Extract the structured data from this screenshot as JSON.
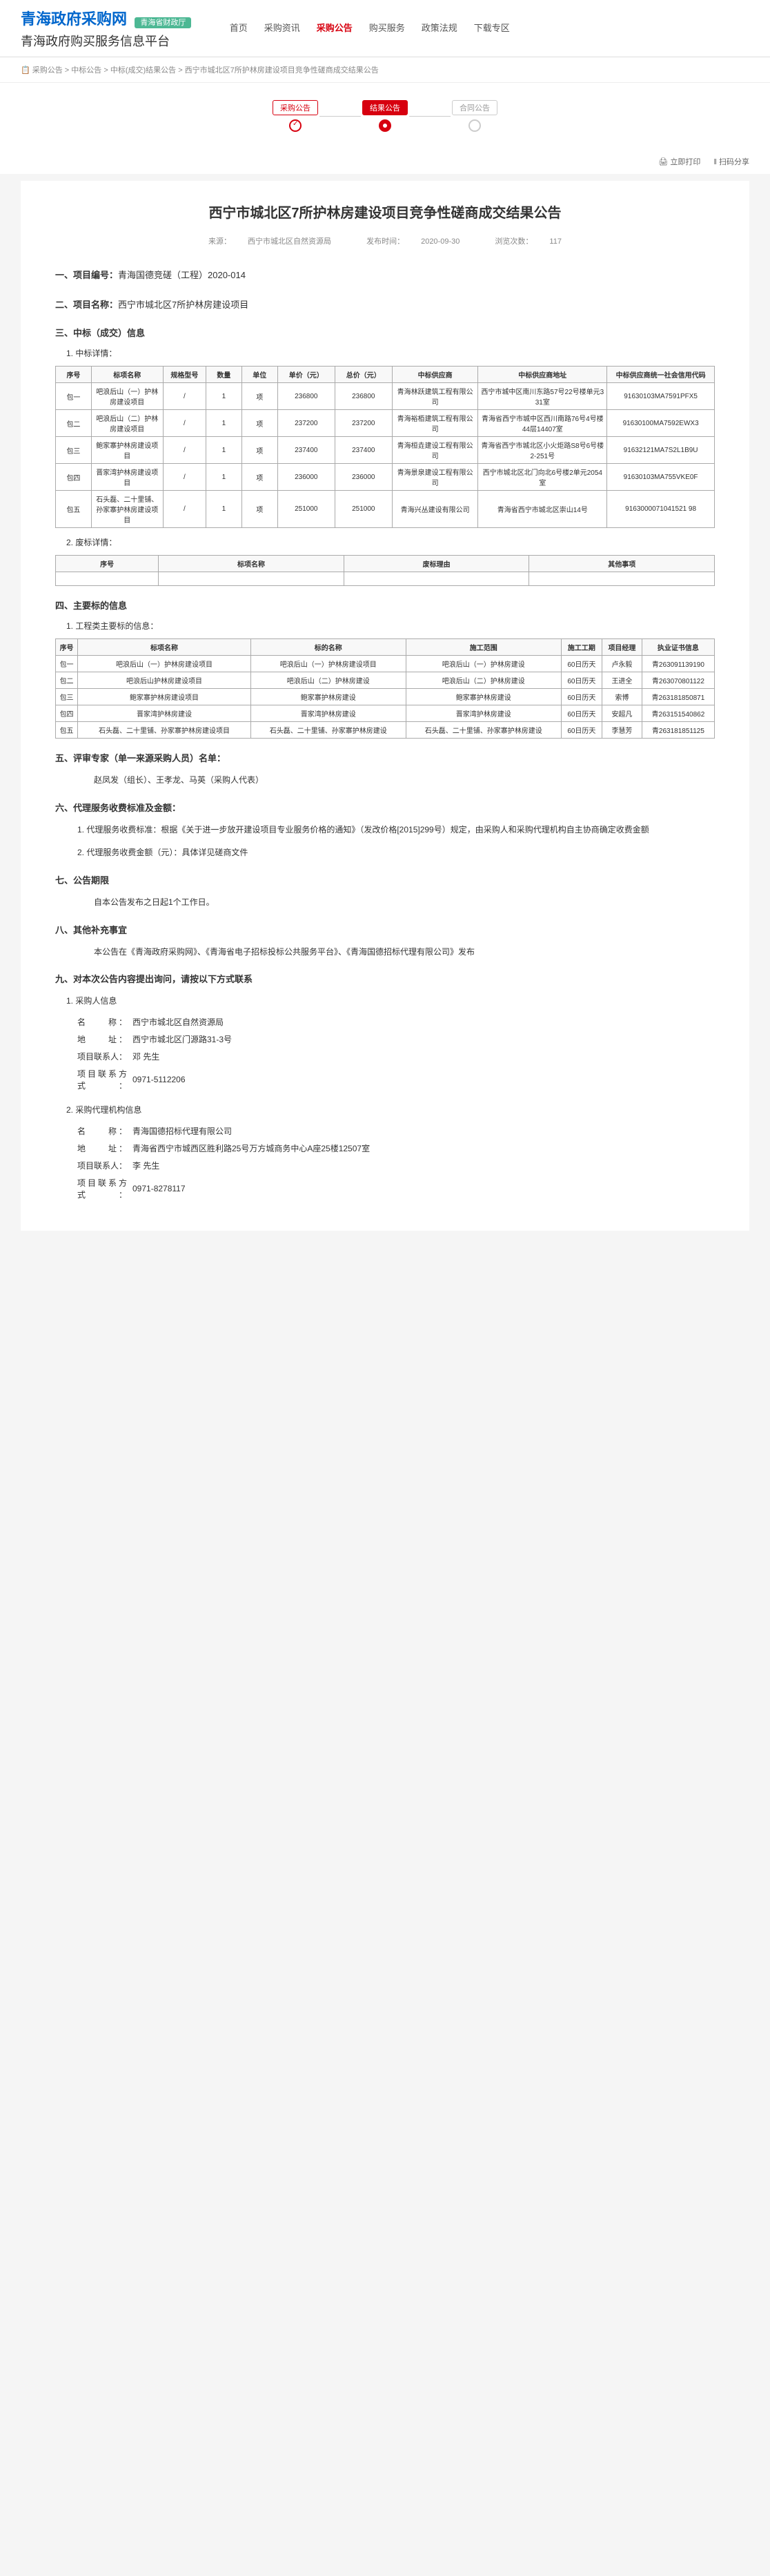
{
  "header": {
    "site_title": "青海政府采购网",
    "badge": "青海省财政厅",
    "site_sub": "青海政府购买服务信息平台",
    "nav": [
      "首页",
      "采购资讯",
      "采购公告",
      "购买服务",
      "政策法规",
      "下载专区"
    ],
    "nav_active_index": 2
  },
  "breadcrumb": "📋 采购公告 > 中标公告 > 中标(成交)结果公告 > 西宁市城北区7所护林房建设项目竞争性磋商成交结果公告",
  "stages": {
    "items": [
      "采购公告",
      "结果公告",
      "合同公告"
    ],
    "active_index": 1
  },
  "toolbar": {
    "print": "🖨 立即打印",
    "share": "‖ 扫码分享"
  },
  "title": "西宁市城北区7所护林房建设项目竞争性磋商成交结果公告",
  "meta": {
    "source_label": "来源：",
    "source": "西宁市城北区自然资源局",
    "date_label": "发布时间：",
    "date": "2020-09-30",
    "views_label": "浏览次数：",
    "views": "117"
  },
  "s1": {
    "label": "一、项目编号：",
    "value": "青海国德竞磋（工程）2020-014"
  },
  "s2": {
    "label": "二、项目名称：",
    "value": "西宁市城北区7所护林房建设项目"
  },
  "s3": {
    "label": "三、中标（成交）信息"
  },
  "s3_sub1": "1. 中标详情：",
  "bid_headers": [
    "序号",
    "标项名称",
    "规格型号",
    "数量",
    "单位",
    "单价（元）",
    "总价（元）",
    "中标供应商",
    "中标供应商地址",
    "中标供应商统一社会信用代码"
  ],
  "bid_rows": [
    {
      "no": "包一",
      "name": "吧浪后山（一）护林房建设项目",
      "spec": "/",
      "qty": "1",
      "unit": "项",
      "price": "236800",
      "total": "236800",
      "supplier": "青海林跃建筑工程有限公司",
      "addr": "西宁市城中区南川东路57号22号楼单元331室",
      "code": "91630103MA7591PFX5"
    },
    {
      "no": "包二",
      "name": "吧浪后山（二）护林房建设项目",
      "spec": "/",
      "qty": "1",
      "unit": "项",
      "price": "237200",
      "total": "237200",
      "supplier": "青海裕栢建筑工程有限公司",
      "addr": "青海省西宁市城中区西川南路76号4号楼44层14407室",
      "code": "91630100MA7592EWX3"
    },
    {
      "no": "包三",
      "name": "鲍家寨护林房建设项目",
      "spec": "/",
      "qty": "1",
      "unit": "项",
      "price": "237400",
      "total": "237400",
      "supplier": "青海桓垚建设工程有限公司",
      "addr": "青海省西宁市城北区小火炬路S8号6号楼2-251号",
      "code": "91632121MA7S2L1B9U"
    },
    {
      "no": "包四",
      "name": "晋家湾护林房建设项目",
      "spec": "/",
      "qty": "1",
      "unit": "项",
      "price": "236000",
      "total": "236000",
      "supplier": "青海景泉建设工程有限公司",
      "addr": "西宁市城北区北门向北6号楼2单元2054室",
      "code": "91630103MA755VKE0F"
    },
    {
      "no": "包五",
      "name": "石头磊、二十里铺、孙家寨护林房建设项目",
      "spec": "/",
      "qty": "1",
      "unit": "项",
      "price": "251000",
      "total": "251000",
      "supplier": "青海兴丛建设有限公司",
      "addr": "青海省西宁市城北区崇山14号",
      "code": "9163000071041521 98"
    }
  ],
  "s3_sub2": "2. 废标详情：",
  "void_headers": [
    "序号",
    "标项名称",
    "废标理由",
    "其他事项"
  ],
  "s4": {
    "label": "四、主要标的信息"
  },
  "s4_sub1": "1. 工程类主要标的信息：",
  "main_headers": [
    "序号",
    "标项名称",
    "标的名称",
    "施工范围",
    "施工工期",
    "项目经理",
    "执业证书信息"
  ],
  "main_rows": [
    {
      "no": "包一",
      "proj": "吧浪后山（一）护林房建设项目",
      "target": "吧浪后山（一）护林房建设项目",
      "scope": "吧浪后山（一）护林房建设",
      "period": "60日历天",
      "mgr": "卢永毅",
      "cert": "青263091139190"
    },
    {
      "no": "包二",
      "proj": "吧浪后山护林房建设项目",
      "target": "吧浪后山（二）护林房建设",
      "scope": "吧浪后山（二）护林房建设",
      "period": "60日历天",
      "mgr": "王进全",
      "cert": "青263070801122"
    },
    {
      "no": "包三",
      "proj": "鲍家寨护林房建设项目",
      "target": "鲍家寨护林房建设",
      "scope": "鲍家寨护林房建设",
      "period": "60日历天",
      "mgr": "索博",
      "cert": "青263181850871"
    },
    {
      "no": "包四",
      "proj": "晋家湾护林房建设",
      "target": "晋家湾护林房建设",
      "scope": "晋家湾护林房建设",
      "period": "60日历天",
      "mgr": "安超凡",
      "cert": "青263151540862"
    },
    {
      "no": "包五",
      "proj": "石头磊、二十里铺、孙家寨护林房建设项目",
      "target": "石头磊、二十里铺、孙家寨护林房建设",
      "scope": "石头磊、二十里铺、孙家寨护林房建设",
      "period": "60日历天",
      "mgr": "李慧芳",
      "cert": "青263181851125"
    }
  ],
  "s5": {
    "label": "五、评审专家（单一来源采购人员）名单：",
    "value": "赵凤发（组长）、王孝龙、马英（采购人代表）"
  },
  "s6": {
    "label": "六、代理服务收费标准及金额：",
    "line1": "1. 代理服务收费标准：根据《关于进一步放开建设项目专业服务价格的通知》（发改价格[2015]299号）规定，由采购人和采购代理机构自主协商确定收费金额",
    "line2": "2. 代理服务收费金额（元）：具体详见磋商文件"
  },
  "s7": {
    "label": "七、公告期限",
    "value": "自本公告发布之日起1个工作日。"
  },
  "s8": {
    "label": "八、其他补充事宜",
    "value": "本公告在《青海政府采购网》、《青海省电子招标投标公共服务平台》、《青海国德招标代理有限公司》发布"
  },
  "s9": {
    "label": "九、对本次公告内容提出询问，请按以下方式联系"
  },
  "purchaser": {
    "heading": "1. 采购人信息",
    "name_lbl": "名　　称：",
    "name": "西宁市城北区自然资源局",
    "addr_lbl": "地　　址：",
    "addr": "西宁市城北区门源路31-3号",
    "phone_lbl": "项目联系人：",
    "phone_person": "邓 先生",
    "tel_lbl": "项目联系方式：",
    "tel": "0971-5112206"
  },
  "agent": {
    "heading": "2. 采购代理机构信息",
    "name_lbl": "名　　称：",
    "name": "青海国德招标代理有限公司",
    "addr_lbl": "地　　址：",
    "addr": "青海省西宁市城西区胜利路25号万方城商务中心A座25楼12507室",
    "phone_lbl": "项目联系人：",
    "phone_person": "李 先生",
    "tel_lbl": "项目联系方式：",
    "tel": "0971-8278117"
  }
}
